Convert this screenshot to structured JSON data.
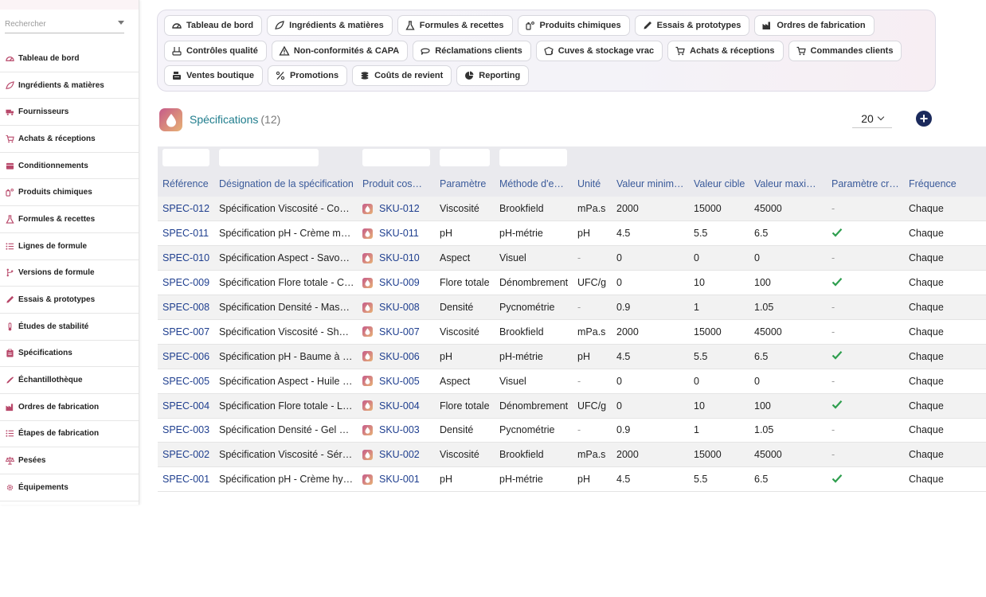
{
  "sidebar": {
    "search_placeholder": "Rechercher",
    "items": [
      {
        "label": "Tableau de bord",
        "icon": "dashboard-icon"
      },
      {
        "label": "Ingrédients & matières",
        "icon": "leaf-icon"
      },
      {
        "label": "Fournisseurs",
        "icon": "truck-icon"
      },
      {
        "label": "Achats & réceptions",
        "icon": "cart-icon"
      },
      {
        "label": "Conditionnements",
        "icon": "box-icon"
      },
      {
        "label": "Produits chimiques",
        "icon": "chemical-icon"
      },
      {
        "label": "Formules & recettes",
        "icon": "flask-icon"
      },
      {
        "label": "Lignes de formule",
        "icon": "list-icon"
      },
      {
        "label": "Versions de formule",
        "icon": "branch-icon"
      },
      {
        "label": "Essais & prototypes",
        "icon": "pipette-icon"
      },
      {
        "label": "Études de stabilité",
        "icon": "thermometer-icon"
      },
      {
        "label": "Spécifications",
        "icon": "clipboard-icon"
      },
      {
        "label": "Échantillothèque",
        "icon": "dropper-icon"
      },
      {
        "label": "Ordres de fabrication",
        "icon": "factory-icon"
      },
      {
        "label": "Étapes de fabrication",
        "icon": "list-icon"
      },
      {
        "label": "Pesées",
        "icon": "scale-icon"
      },
      {
        "label": "Équipements",
        "icon": "gear-icon"
      }
    ]
  },
  "menu": {
    "rows": [
      [
        {
          "label": "Tableau de bord",
          "icon": "dashboard-icon"
        },
        {
          "label": "Ingrédients & matières",
          "icon": "leaf-icon"
        },
        {
          "label": "Formules & recettes",
          "icon": "flask-icon"
        },
        {
          "label": "Produits chimiques",
          "icon": "chemical-icon"
        },
        {
          "label": "Essais & prototypes",
          "icon": "pipette-icon"
        },
        {
          "label": "Ordres de fabrication",
          "icon": "factory-icon"
        }
      ],
      [
        {
          "label": "Contrôles qualité",
          "icon": "quality-icon"
        },
        {
          "label": "Non-conformités & CAPA",
          "icon": "warning-icon"
        },
        {
          "label": "Réclamations clients",
          "icon": "chat-icon"
        },
        {
          "label": "Cuves & stockage vrac",
          "icon": "bucket-icon"
        },
        {
          "label": "Achats & réceptions",
          "icon": "cart-icon"
        },
        {
          "label": "Commandes clients",
          "icon": "cart-icon"
        }
      ],
      [
        {
          "label": "Ventes boutique",
          "icon": "register-icon"
        },
        {
          "label": "Promotions",
          "icon": "percent-icon"
        },
        {
          "label": "Coûts de revient",
          "icon": "coins-icon"
        },
        {
          "label": "Reporting",
          "icon": "pie-chart-icon"
        }
      ]
    ]
  },
  "page": {
    "title": "Spécifications",
    "count": "(12)",
    "page_size": "20",
    "add_label": "+"
  },
  "table": {
    "columns": [
      "Référence",
      "Désignation de la spécification",
      "Produit cos…",
      "Paramètre",
      "Méthode d'e…",
      "Unité",
      "Valeur minim…",
      "Valeur cible",
      "Valeur maxi…",
      "Paramètre cr…",
      "Fréquence"
    ],
    "rows": [
      {
        "ref": "SPEC-012",
        "name": "Spécification Viscosité - Co…",
        "sku": "SKU-012",
        "param": "Viscosité",
        "method": "Brookfield",
        "unit": "mPa.s",
        "min": "2000",
        "target": "15000",
        "max": "45000",
        "critical": false,
        "freq": "Chaque"
      },
      {
        "ref": "SPEC-011",
        "name": "Spécification pH - Crème m…",
        "sku": "SKU-011",
        "param": "pH",
        "method": "pH-métrie",
        "unit": "pH",
        "min": "4.5",
        "target": "5.5",
        "max": "6.5",
        "critical": true,
        "freq": "Chaque"
      },
      {
        "ref": "SPEC-010",
        "name": "Spécification Aspect - Savo…",
        "sku": "SKU-010",
        "param": "Aspect",
        "method": "Visuel",
        "unit": "-",
        "min": "0",
        "target": "0",
        "max": "0",
        "critical": false,
        "freq": "Chaque"
      },
      {
        "ref": "SPEC-009",
        "name": "Spécification Flore totale - C…",
        "sku": "SKU-009",
        "param": "Flore totale",
        "method": "Dénombrement",
        "unit": "UFC/g",
        "min": "0",
        "target": "10",
        "max": "100",
        "critical": true,
        "freq": "Chaque"
      },
      {
        "ref": "SPEC-008",
        "name": "Spécification Densité - Mas…",
        "sku": "SKU-008",
        "param": "Densité",
        "method": "Pycnométrie",
        "unit": "-",
        "min": "0.9",
        "target": "1",
        "max": "1.05",
        "critical": false,
        "freq": "Chaque"
      },
      {
        "ref": "SPEC-007",
        "name": "Spécification Viscosité - Sh…",
        "sku": "SKU-007",
        "param": "Viscosité",
        "method": "Brookfield",
        "unit": "mPa.s",
        "min": "2000",
        "target": "15000",
        "max": "45000",
        "critical": false,
        "freq": "Chaque"
      },
      {
        "ref": "SPEC-006",
        "name": "Spécification pH - Baume à …",
        "sku": "SKU-006",
        "param": "pH",
        "method": "pH-métrie",
        "unit": "pH",
        "min": "4.5",
        "target": "5.5",
        "max": "6.5",
        "critical": true,
        "freq": "Chaque"
      },
      {
        "ref": "SPEC-005",
        "name": "Spécification Aspect - Huile …",
        "sku": "SKU-005",
        "param": "Aspect",
        "method": "Visuel",
        "unit": "-",
        "min": "0",
        "target": "0",
        "max": "0",
        "critical": false,
        "freq": "Chaque"
      },
      {
        "ref": "SPEC-004",
        "name": "Spécification Flore totale - L…",
        "sku": "SKU-004",
        "param": "Flore totale",
        "method": "Dénombrement",
        "unit": "UFC/g",
        "min": "0",
        "target": "10",
        "max": "100",
        "critical": true,
        "freq": "Chaque"
      },
      {
        "ref": "SPEC-003",
        "name": "Spécification Densité - Gel …",
        "sku": "SKU-003",
        "param": "Densité",
        "method": "Pycnométrie",
        "unit": "-",
        "min": "0.9",
        "target": "1",
        "max": "1.05",
        "critical": false,
        "freq": "Chaque"
      },
      {
        "ref": "SPEC-002",
        "name": "Spécification Viscosité - Sér…",
        "sku": "SKU-002",
        "param": "Viscosité",
        "method": "Brookfield",
        "unit": "mPa.s",
        "min": "2000",
        "target": "15000",
        "max": "45000",
        "critical": false,
        "freq": "Chaque"
      },
      {
        "ref": "SPEC-001",
        "name": "Spécification pH - Crème hy…",
        "sku": "SKU-001",
        "param": "pH",
        "method": "pH-métrie",
        "unit": "pH",
        "min": "4.5",
        "target": "5.5",
        "max": "6.5",
        "critical": true,
        "freq": "Chaque"
      }
    ]
  },
  "colors": {
    "accent_teal": "#1e7c8c",
    "link_blue": "#1f3f8f",
    "icon_rose": "#b8486a",
    "check_green": "#2e9e4e",
    "add_button": "#1b2a5c"
  }
}
